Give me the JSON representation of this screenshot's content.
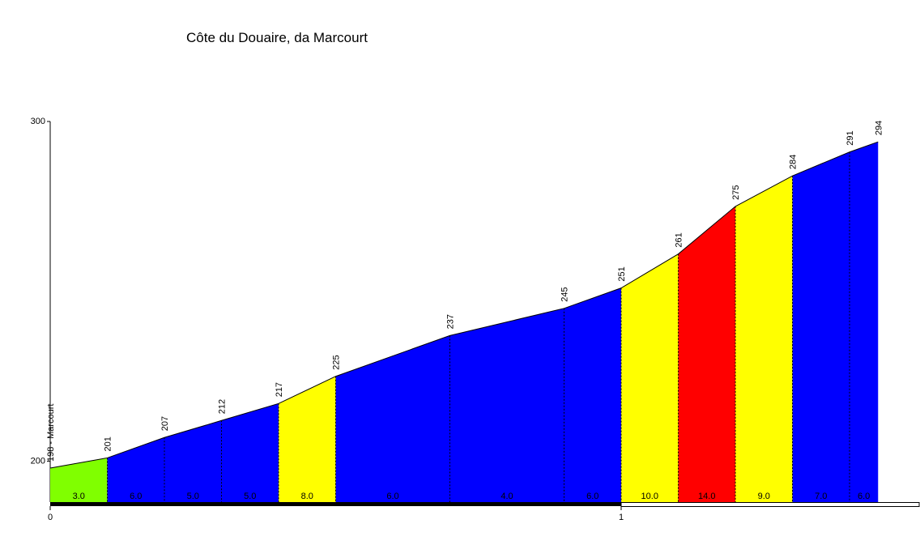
{
  "chart_data": {
    "type": "climb-profile",
    "title": "Côte du Douaire, da Marcourt",
    "x": [
      0,
      0.1,
      0.2,
      0.3,
      0.4,
      0.5,
      0.6,
      0.7,
      0.8,
      0.9,
      1.0,
      1.1,
      1.2,
      1.3,
      1.4,
      1.45
    ],
    "values": [
      198,
      201,
      207,
      212,
      217,
      225,
      231,
      237,
      241,
      245,
      251,
      261,
      275,
      284,
      291,
      294
    ],
    "value_labels": [
      "198 - Marcourt",
      "201",
      "207",
      "212",
      "217",
      "225",
      null,
      "237",
      null,
      "245",
      "251",
      "261",
      "275",
      "284",
      "291",
      "294"
    ],
    "segments": [
      {
        "x": [
          0,
          0.1
        ],
        "grade": 3,
        "grade_label": "3.0",
        "color": "#80ff00"
      },
      {
        "x": [
          0.1,
          0.2
        ],
        "grade": 6,
        "grade_label": "6.0",
        "color": "#0000ff"
      },
      {
        "x": [
          0.2,
          0.3
        ],
        "grade": 5,
        "grade_label": "5.0",
        "color": "#0000ff"
      },
      {
        "x": [
          0.3,
          0.4
        ],
        "grade": 5,
        "grade_label": "5.0",
        "color": "#0000ff"
      },
      {
        "x": [
          0.4,
          0.5
        ],
        "grade": 8,
        "grade_label": "8.0",
        "color": "#ffff00"
      },
      {
        "x": [
          0.5,
          0.7
        ],
        "grade": 6,
        "grade_label": "6.0",
        "color": "#0000ff"
      },
      {
        "x": [
          0.7,
          0.9
        ],
        "grade": 4,
        "grade_label": "4.0",
        "color": "#0000ff"
      },
      {
        "x": [
          0.9,
          1.0
        ],
        "grade": 6,
        "grade_label": "6.0",
        "color": "#0000ff"
      },
      {
        "x": [
          1.0,
          1.1
        ],
        "grade": 10,
        "grade_label": "10.0",
        "color": "#ffff00"
      },
      {
        "x": [
          1.1,
          1.2
        ],
        "grade": 14,
        "grade_label": "14.0",
        "color": "#ff0000"
      },
      {
        "x": [
          1.2,
          1.3
        ],
        "grade": 9,
        "grade_label": "9.0",
        "color": "#ffff00"
      },
      {
        "x": [
          1.3,
          1.4
        ],
        "grade": 7,
        "grade_label": "7.0",
        "color": "#0000ff"
      },
      {
        "x": [
          1.4,
          1.45
        ],
        "grade": 6,
        "grade_label": "6.0",
        "color": "#0000ff"
      }
    ],
    "xticks": [
      0,
      1
    ],
    "ylim": [
      188,
      300
    ],
    "yticks": [
      200,
      300
    ]
  }
}
